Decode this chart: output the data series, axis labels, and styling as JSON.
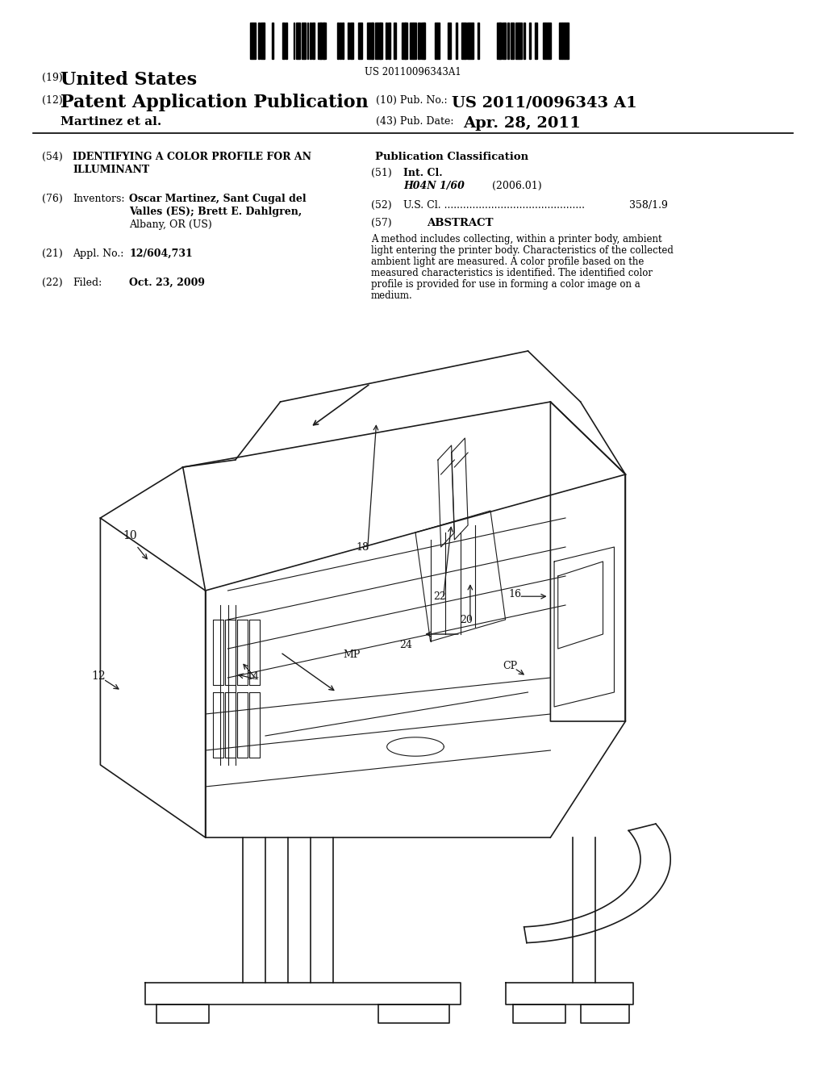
{
  "bg_color": "#ffffff",
  "barcode_text": "US 20110096343A1",
  "title_19": "(19)",
  "title_19_text": "United States",
  "title_12": "(12)",
  "title_12_text": "Patent Application Publication",
  "pub_no_label": "(10) Pub. No.:",
  "pub_no_value": "US 2011/0096343 A1",
  "pub_date_label": "(43) Pub. Date:",
  "pub_date_value": "Apr. 28, 2011",
  "inventor_line": "Martinez et al.",
  "field54_label": "(54)",
  "field54_text1": "IDENTIFYING A COLOR PROFILE FOR AN",
  "field54_text2": "ILLUMINANT",
  "pub_class_title": "Publication Classification",
  "field51_label": "(51)",
  "field51_text": "Int. Cl.",
  "field51_class": "H04N 1/60",
  "field51_year": "(2006.01)",
  "field52_label": "(52)",
  "field52_text": "U.S. Cl. .............................................",
  "field52_value": "358/1.9",
  "field57_label": "(57)",
  "field57_title": "ABSTRACT",
  "abstract_lines": [
    "A method includes collecting, within a printer body, ambient",
    "light entering the printer body. Characteristics of the collected",
    "ambient light are measured. A color profile based on the",
    "measured characteristics is identified. The identified color",
    "profile is provided for use in forming a color image on a",
    "medium."
  ],
  "field76_label": "(76)",
  "field76_text": "Inventors:",
  "field76_value1": "Oscar Martinez, Sant Cugal del",
  "field76_value2": "Valles (ES); Brett E. Dahlgren,",
  "field76_value3": "Albany, OR (US)",
  "field21_label": "(21)",
  "field21_text": "Appl. No.:",
  "field21_value": "12/604,731",
  "field22_label": "(22)",
  "field22_text": "Filed:",
  "field22_value": "Oct. 23, 2009"
}
